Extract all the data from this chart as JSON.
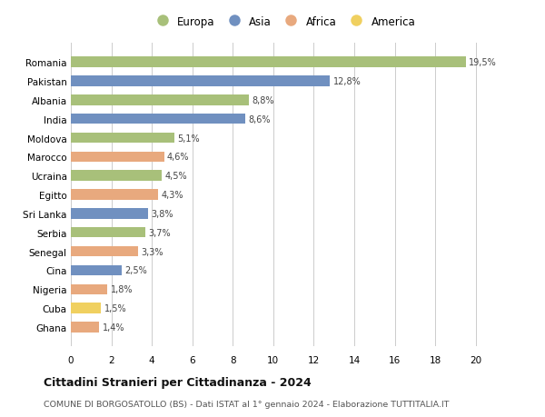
{
  "countries": [
    "Romania",
    "Pakistan",
    "Albania",
    "India",
    "Moldova",
    "Marocco",
    "Ucraina",
    "Egitto",
    "Sri Lanka",
    "Serbia",
    "Senegal",
    "Cina",
    "Nigeria",
    "Cuba",
    "Ghana"
  ],
  "values": [
    19.5,
    12.8,
    8.8,
    8.6,
    5.1,
    4.6,
    4.5,
    4.3,
    3.8,
    3.7,
    3.3,
    2.5,
    1.8,
    1.5,
    1.4
  ],
  "labels": [
    "19,5%",
    "12,8%",
    "8,8%",
    "8,6%",
    "5,1%",
    "4,6%",
    "4,5%",
    "4,3%",
    "3,8%",
    "3,7%",
    "3,3%",
    "2,5%",
    "1,8%",
    "1,5%",
    "1,4%"
  ],
  "continents": [
    "Europa",
    "Asia",
    "Europa",
    "Asia",
    "Europa",
    "Africa",
    "Europa",
    "Africa",
    "Asia",
    "Europa",
    "Africa",
    "Asia",
    "Africa",
    "America",
    "Africa"
  ],
  "colors": {
    "Europa": "#a8c07a",
    "Asia": "#7090c0",
    "Africa": "#e8a97e",
    "America": "#f0d060"
  },
  "legend_order": [
    "Europa",
    "Asia",
    "Africa",
    "America"
  ],
  "xlim": [
    0,
    21
  ],
  "xticks": [
    0,
    2,
    4,
    6,
    8,
    10,
    12,
    14,
    16,
    18,
    20
  ],
  "title": "Cittadini Stranieri per Cittadinanza - 2024",
  "subtitle": "COMUNE DI BORGOSATOLLO (BS) - Dati ISTAT al 1° gennaio 2024 - Elaborazione TUTTITALIA.IT",
  "background_color": "#ffffff",
  "grid_color": "#cccccc"
}
